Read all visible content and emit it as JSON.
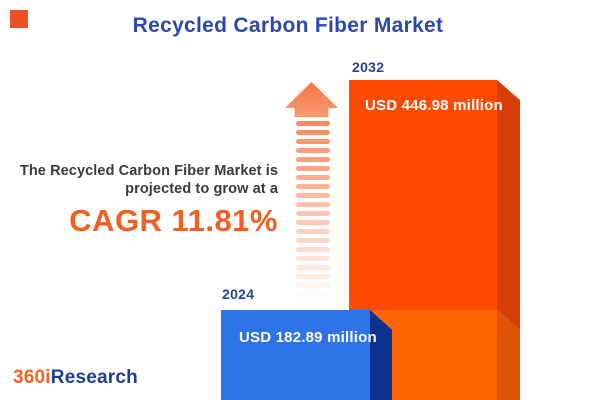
{
  "header": {
    "title": "Recycled Carbon Fiber Market",
    "title_color": "#2b48ac"
  },
  "brand_square": {
    "color": "#f04f23"
  },
  "callout": {
    "line1": "The Recycled Carbon Fiber Market is",
    "line2": "projected to grow at a",
    "cagr": "CAGR 11.81%",
    "cagr_color": "#f15f22",
    "text_color": "#3a3a3a"
  },
  "arrow": {
    "icon": "up-arrow-icon",
    "stripe_count": 20,
    "head_color_top": "#f77446",
    "head_color_bottom": "#f99a71",
    "stripe_color": "#f98b60"
  },
  "chart_data": {
    "type": "bar",
    "title": "Recycled Carbon Fiber Market",
    "unit": "USD million",
    "categories": [
      "2024",
      "2032"
    ],
    "values": [
      182.89,
      446.98
    ],
    "value_labels": [
      "USD 182.89 million",
      "USD 446.98 million"
    ],
    "cagr_percent": 11.81,
    "legend": "none",
    "grid": false,
    "axes": "none",
    "colors": {
      "bar_2024_front": "#2e73e8",
      "bar_2024_side": "#0e3190",
      "bar_2032_front_upper": "#fb4a01",
      "bar_2032_front_lower": "#fd6601",
      "bar_2032_side_upper": "#d63e06",
      "bar_2032_side_lower": "#de5404",
      "year_label": "#27419e",
      "value_text": "#ffffff"
    }
  },
  "footer_logo": {
    "part1": "360i",
    "part2": "Research",
    "part1_color": "#f26422",
    "part2_color": "#1e3d96"
  }
}
